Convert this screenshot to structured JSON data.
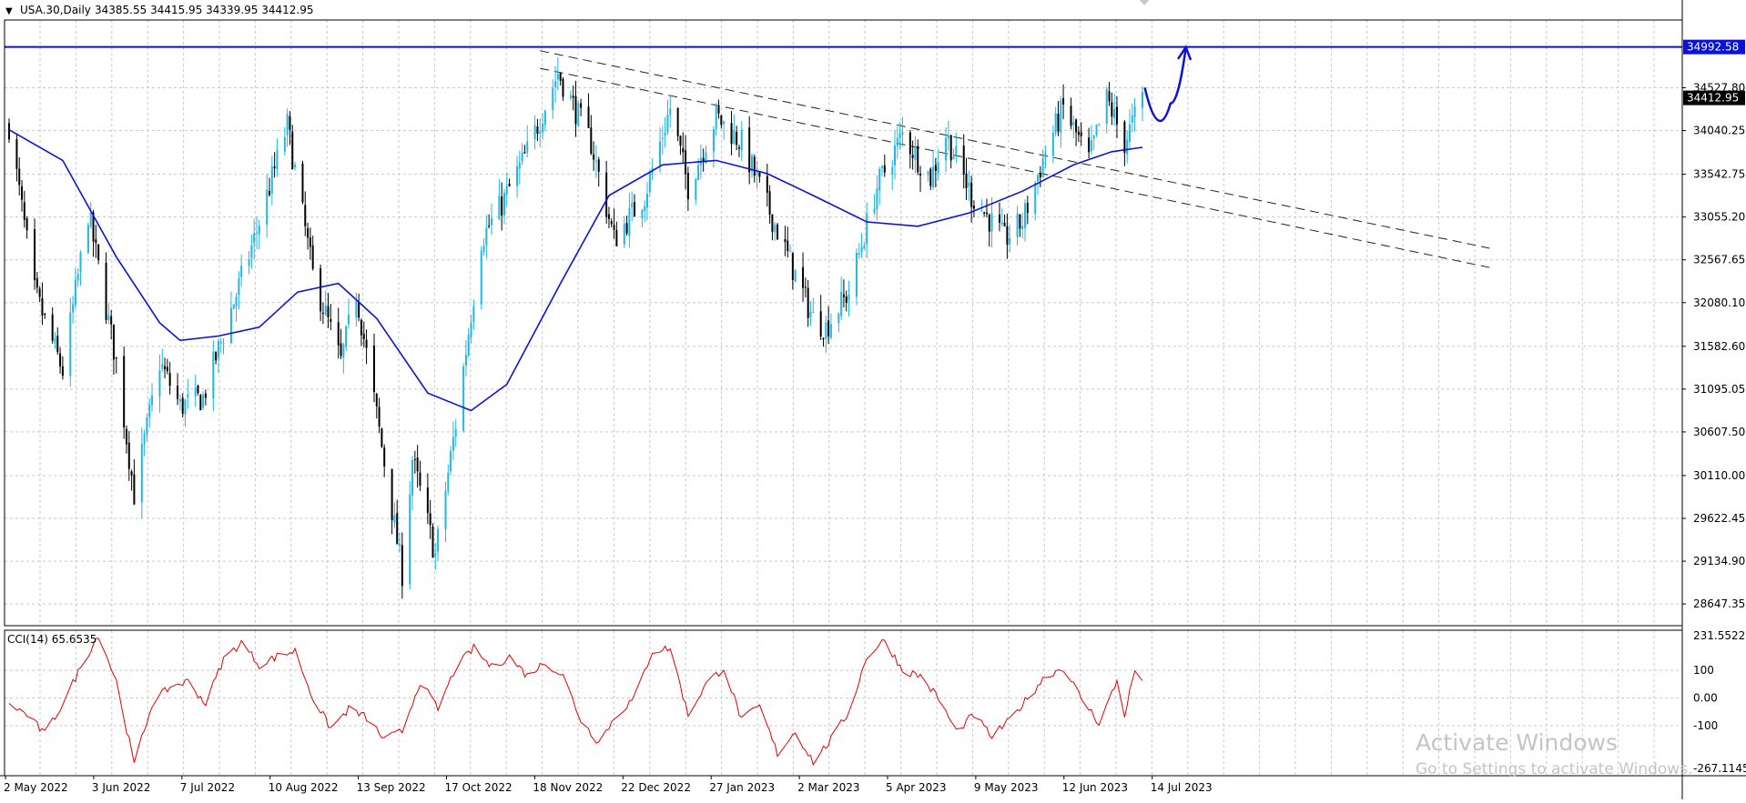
{
  "header": {
    "symbol_label": "USA.30,Daily",
    "ohlc_label": "34385.55 34415.95 34339.95 34412.95",
    "menu_glyph": "▼"
  },
  "indicator": {
    "label": "CCI(14) 65.6535"
  },
  "price_axis": {
    "ticks": [
      "34527.80",
      "34040.25",
      "33542.75",
      "33055.20",
      "32567.65",
      "32080.10",
      "31582.60",
      "31095.05",
      "30607.50",
      "30110.00",
      "29622.45",
      "29134.90",
      "28647.35"
    ],
    "tick_values": [
      34527.8,
      34040.25,
      33542.75,
      33055.2,
      32567.65,
      32080.1,
      31582.6,
      31095.05,
      30607.5,
      30110.0,
      29622.45,
      29134.9,
      28647.35
    ],
    "current_price_label": "34412.95",
    "level_label": "34992.58"
  },
  "cci_axis": {
    "ticks": [
      "231.5522",
      "100",
      "0.00",
      "-100",
      "-267.1145"
    ],
    "tick_values": [
      231.5522,
      100,
      0,
      -100,
      -267.1145
    ]
  },
  "time_axis": {
    "labels": [
      "2 May 2022",
      "3 Jun 2022",
      "7 Jul 2022",
      "10 Aug 2022",
      "13 Sep 2022",
      "17 Oct 2022",
      "18 Nov 2022",
      "22 Dec 2022",
      "27 Jan 2023",
      "2 Mar 2023",
      "5 Apr 2023",
      "9 May 2023",
      "12 Jun 2023",
      "14 Jul 2023"
    ]
  },
  "watermark": {
    "title": "Activate Windows",
    "subtitle": "Go to Settings to activate Windows."
  },
  "colors": {
    "bull_candle": "#1fb7e6",
    "bear_candle": "#000000",
    "moving_average": "#0a12d8",
    "level_line": "#0a12d8",
    "cci_line": "#e60000",
    "grid": "#c8c8c8",
    "current_price_box": "#000000"
  },
  "chart_data": [
    {
      "type": "candlestick",
      "symbol": "USA.30",
      "timeframe": "Daily",
      "ylim": [
        28400,
        35300
      ],
      "grid": true,
      "last_close": 34412.95,
      "horizontal_level": 34992.58,
      "anchors": [
        {
          "date": "2022-04-29",
          "close": 34100
        },
        {
          "date": "2022-05-09",
          "close": 32200
        },
        {
          "date": "2022-05-20",
          "close": 31300
        },
        {
          "date": "2022-05-30",
          "close": 33100
        },
        {
          "date": "2022-06-10",
          "close": 31400
        },
        {
          "date": "2022-06-17",
          "close": 29900
        },
        {
          "date": "2022-06-27",
          "close": 31400
        },
        {
          "date": "2022-07-05",
          "close": 30900
        },
        {
          "date": "2022-07-14",
          "close": 31000
        },
        {
          "date": "2022-07-25",
          "close": 32000
        },
        {
          "date": "2022-08-03",
          "close": 32800
        },
        {
          "date": "2022-08-16",
          "close": 34100
        },
        {
          "date": "2022-08-26",
          "close": 32400
        },
        {
          "date": "2022-09-06",
          "close": 31400
        },
        {
          "date": "2022-09-12",
          "close": 32200
        },
        {
          "date": "2022-09-20",
          "close": 30800
        },
        {
          "date": "2022-09-30",
          "close": 29000
        },
        {
          "date": "2022-10-04",
          "close": 30300
        },
        {
          "date": "2022-10-13",
          "close": 29200
        },
        {
          "date": "2022-10-21",
          "close": 30700
        },
        {
          "date": "2022-10-31",
          "close": 32800
        },
        {
          "date": "2022-11-08",
          "close": 33200
        },
        {
          "date": "2022-11-18",
          "close": 33800
        },
        {
          "date": "2022-11-30",
          "close": 34700
        },
        {
          "date": "2022-12-13",
          "close": 33900
        },
        {
          "date": "2022-12-22",
          "close": 32800
        },
        {
          "date": "2023-01-03",
          "close": 33300
        },
        {
          "date": "2023-01-13",
          "close": 34300
        },
        {
          "date": "2023-01-20",
          "close": 33400
        },
        {
          "date": "2023-01-31",
          "close": 34200
        },
        {
          "date": "2023-02-10",
          "close": 33900
        },
        {
          "date": "2023-02-24",
          "close": 32900
        },
        {
          "date": "2023-03-10",
          "close": 31900
        },
        {
          "date": "2023-03-15",
          "close": 31800
        },
        {
          "date": "2023-03-24",
          "close": 32200
        },
        {
          "date": "2023-04-04",
          "close": 33400
        },
        {
          "date": "2023-04-14",
          "close": 34000
        },
        {
          "date": "2023-04-25",
          "close": 33500
        },
        {
          "date": "2023-05-01",
          "close": 34000
        },
        {
          "date": "2023-05-11",
          "close": 33300
        },
        {
          "date": "2023-05-24",
          "close": 32800
        },
        {
          "date": "2023-05-31",
          "close": 33000
        },
        {
          "date": "2023-06-09",
          "close": 33800
        },
        {
          "date": "2023-06-16",
          "close": 34300
        },
        {
          "date": "2023-06-26",
          "close": 33700
        },
        {
          "date": "2023-07-03",
          "close": 34400
        },
        {
          "date": "2023-07-10",
          "close": 33900
        },
        {
          "date": "2023-07-17",
          "close": 34413
        }
      ],
      "moving_average": [
        {
          "date": "2022-04-29",
          "value": 34050
        },
        {
          "date": "2022-05-20",
          "value": 33700
        },
        {
          "date": "2022-06-10",
          "value": 32600
        },
        {
          "date": "2022-06-27",
          "value": 31850
        },
        {
          "date": "2022-07-05",
          "value": 31650
        },
        {
          "date": "2022-07-20",
          "value": 31700
        },
        {
          "date": "2022-08-05",
          "value": 31800
        },
        {
          "date": "2022-08-20",
          "value": 32200
        },
        {
          "date": "2022-09-05",
          "value": 32300
        },
        {
          "date": "2022-09-20",
          "value": 31900
        },
        {
          "date": "2022-10-10",
          "value": 31050
        },
        {
          "date": "2022-10-27",
          "value": 30850
        },
        {
          "date": "2022-11-10",
          "value": 31150
        },
        {
          "date": "2022-12-01",
          "value": 32300
        },
        {
          "date": "2022-12-20",
          "value": 33300
        },
        {
          "date": "2023-01-10",
          "value": 33650
        },
        {
          "date": "2023-01-31",
          "value": 33700
        },
        {
          "date": "2023-02-20",
          "value": 33550
        },
        {
          "date": "2023-03-10",
          "value": 33300
        },
        {
          "date": "2023-03-31",
          "value": 33000
        },
        {
          "date": "2023-04-20",
          "value": 32950
        },
        {
          "date": "2023-05-10",
          "value": 33100
        },
        {
          "date": "2023-05-31",
          "value": 33350
        },
        {
          "date": "2023-06-20",
          "value": 33650
        },
        {
          "date": "2023-07-05",
          "value": 33800
        },
        {
          "date": "2023-07-17",
          "value": 33850
        }
      ],
      "trendlines": [
        {
          "style": "dashed",
          "from": {
            "date": "2022-11-23",
            "value": 34950
          },
          "to": {
            "date": "2023-11-30",
            "value": 32700
          }
        },
        {
          "style": "dashed",
          "from": {
            "date": "2022-11-23",
            "value": 34750
          },
          "to": {
            "date": "2023-11-30",
            "value": 32480
          }
        }
      ],
      "forecast_path": [
        {
          "date": "2023-07-18",
          "value": 34520
        },
        {
          "date": "2023-07-24",
          "value": 34150
        },
        {
          "date": "2023-07-28",
          "value": 34350
        },
        {
          "date": "2023-08-03",
          "value": 34990
        }
      ]
    },
    {
      "type": "line",
      "name": "CCI(14)",
      "last_value": 65.6535,
      "ylim": [
        -267.1145,
        231.5522
      ],
      "grid": true,
      "anchors": [
        {
          "date": "2022-04-29",
          "value": -20
        },
        {
          "date": "2022-05-06",
          "value": -60
        },
        {
          "date": "2022-05-13",
          "value": -130
        },
        {
          "date": "2022-05-20",
          "value": -20
        },
        {
          "date": "2022-05-27",
          "value": 110
        },
        {
          "date": "2022-06-03",
          "value": 230
        },
        {
          "date": "2022-06-10",
          "value": 60
        },
        {
          "date": "2022-06-17",
          "value": -240
        },
        {
          "date": "2022-06-24",
          "value": -20
        },
        {
          "date": "2022-07-01",
          "value": 40
        },
        {
          "date": "2022-07-08",
          "value": 60
        },
        {
          "date": "2022-07-15",
          "value": -20
        },
        {
          "date": "2022-07-22",
          "value": 140
        },
        {
          "date": "2022-07-29",
          "value": 200
        },
        {
          "date": "2022-08-05",
          "value": 120
        },
        {
          "date": "2022-08-12",
          "value": 150
        },
        {
          "date": "2022-08-19",
          "value": 170
        },
        {
          "date": "2022-08-26",
          "value": 0
        },
        {
          "date": "2022-09-02",
          "value": -110
        },
        {
          "date": "2022-09-09",
          "value": -40
        },
        {
          "date": "2022-09-16",
          "value": -70
        },
        {
          "date": "2022-09-23",
          "value": -150
        },
        {
          "date": "2022-09-30",
          "value": -120
        },
        {
          "date": "2022-10-07",
          "value": 60
        },
        {
          "date": "2022-10-14",
          "value": -40
        },
        {
          "date": "2022-10-21",
          "value": 110
        },
        {
          "date": "2022-10-28",
          "value": 180
        },
        {
          "date": "2022-11-04",
          "value": 110
        },
        {
          "date": "2022-11-11",
          "value": 150
        },
        {
          "date": "2022-11-18",
          "value": 80
        },
        {
          "date": "2022-11-25",
          "value": 130
        },
        {
          "date": "2022-12-02",
          "value": 80
        },
        {
          "date": "2022-12-09",
          "value": -80
        },
        {
          "date": "2022-12-16",
          "value": -160
        },
        {
          "date": "2022-12-23",
          "value": -60
        },
        {
          "date": "2022-12-30",
          "value": 0
        },
        {
          "date": "2023-01-06",
          "value": 170
        },
        {
          "date": "2023-01-13",
          "value": 180
        },
        {
          "date": "2023-01-20",
          "value": -60
        },
        {
          "date": "2023-01-27",
          "value": 50
        },
        {
          "date": "2023-02-03",
          "value": 110
        },
        {
          "date": "2023-02-10",
          "value": -80
        },
        {
          "date": "2023-02-17",
          "value": -30
        },
        {
          "date": "2023-02-24",
          "value": -200
        },
        {
          "date": "2023-03-03",
          "value": -120
        },
        {
          "date": "2023-03-10",
          "value": -230
        },
        {
          "date": "2023-03-17",
          "value": -150
        },
        {
          "date": "2023-03-24",
          "value": -50
        },
        {
          "date": "2023-03-31",
          "value": 150
        },
        {
          "date": "2023-04-07",
          "value": 210
        },
        {
          "date": "2023-04-14",
          "value": 100
        },
        {
          "date": "2023-04-21",
          "value": 80
        },
        {
          "date": "2023-04-28",
          "value": 0
        },
        {
          "date": "2023-05-05",
          "value": -120
        },
        {
          "date": "2023-05-12",
          "value": -60
        },
        {
          "date": "2023-05-19",
          "value": -140
        },
        {
          "date": "2023-05-26",
          "value": -80
        },
        {
          "date": "2023-06-02",
          "value": 0
        },
        {
          "date": "2023-06-09",
          "value": 80
        },
        {
          "date": "2023-06-16",
          "value": 110
        },
        {
          "date": "2023-06-23",
          "value": 0
        },
        {
          "date": "2023-06-30",
          "value": -90
        },
        {
          "date": "2023-07-07",
          "value": 60
        },
        {
          "date": "2023-07-10",
          "value": -60
        },
        {
          "date": "2023-07-14",
          "value": 100
        },
        {
          "date": "2023-07-17",
          "value": 65.65
        }
      ]
    }
  ]
}
